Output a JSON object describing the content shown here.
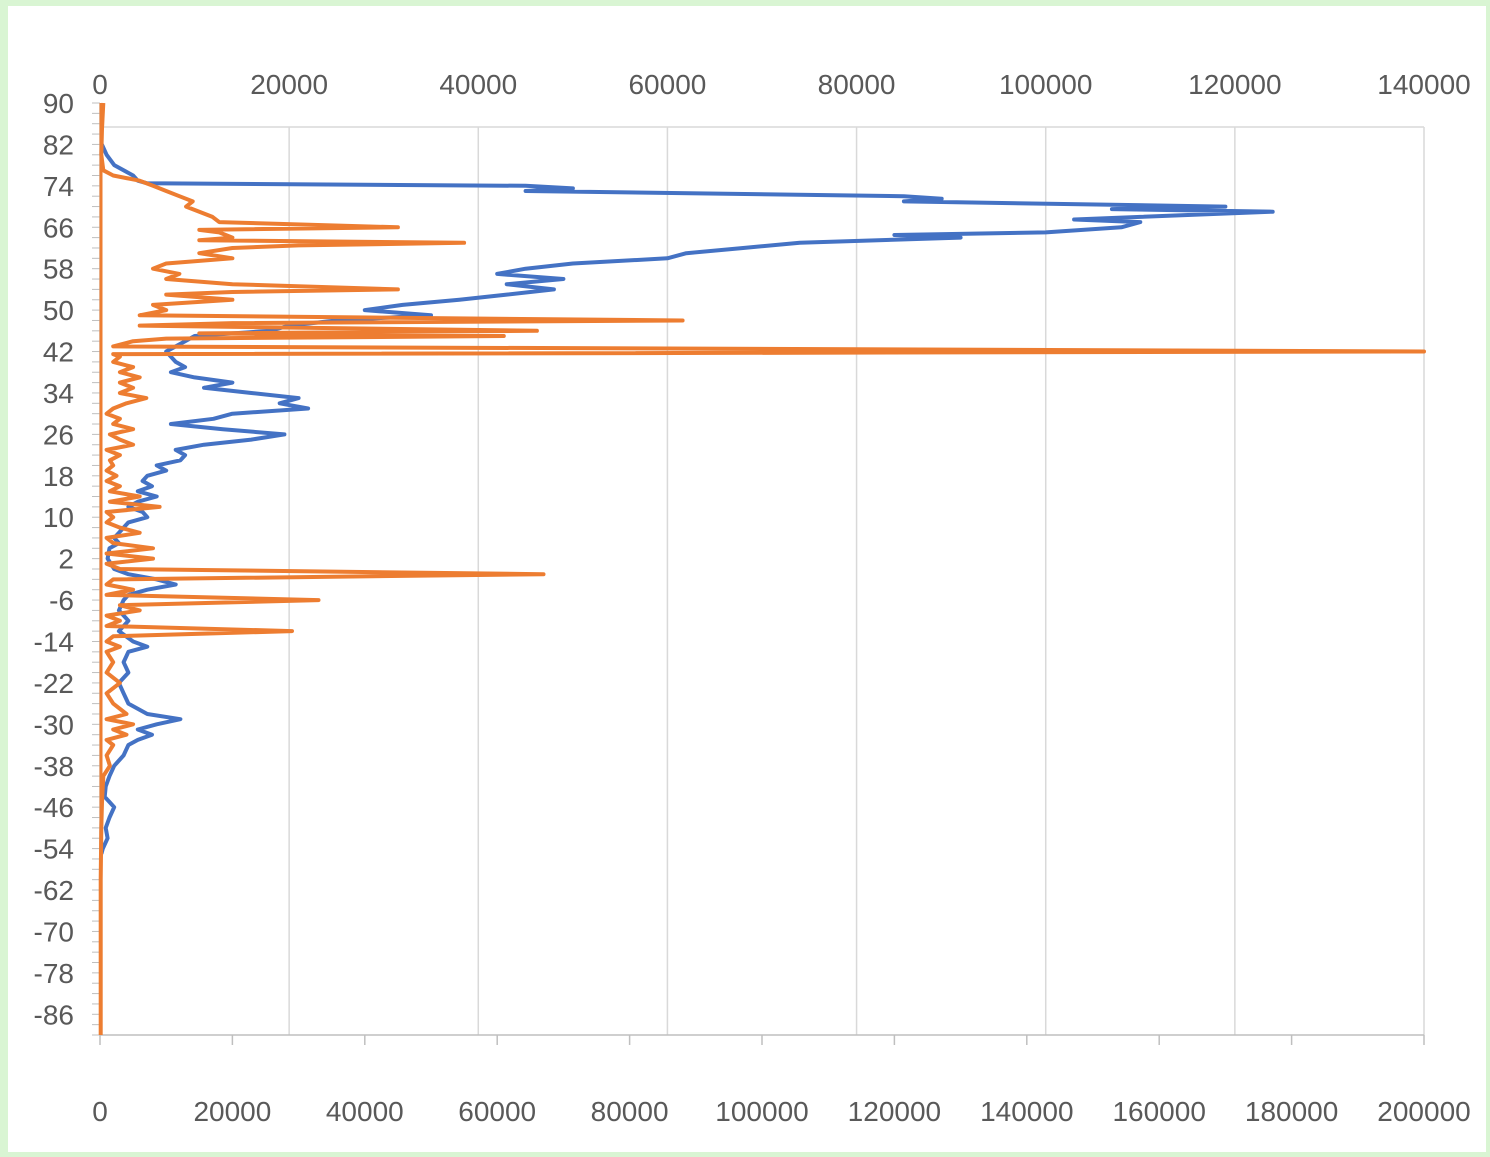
{
  "chart_data": {
    "type": "line",
    "orientation": "vertical-profile",
    "title": "",
    "y_axis": {
      "label": "",
      "range": [
        -90,
        90
      ],
      "tick_labels": [
        "90",
        "82",
        "74",
        "66",
        "58",
        "50",
        "42",
        "34",
        "26",
        "18",
        "10",
        "2",
        "-6",
        "-14",
        "-22",
        "-30",
        "-38",
        "-46",
        "-54",
        "-62",
        "-70",
        "-78",
        "-86"
      ]
    },
    "x_axis_top": {
      "label": "",
      "range": [
        0,
        140000
      ],
      "tick_labels": [
        "0",
        "20000",
        "40000",
        "60000",
        "80000",
        "100000",
        "120000",
        "140000"
      ],
      "gridlines": true
    },
    "x_axis_bottom": {
      "label": "",
      "range": [
        0,
        200000
      ],
      "tick_labels": [
        "0",
        "20000",
        "40000",
        "60000",
        "80000",
        "100000",
        "120000",
        "140000",
        "160000",
        "180000",
        "200000"
      ]
    },
    "legend": "none",
    "series": [
      {
        "axis": "top",
        "color": "#4472c4",
        "points": [
          [
            82,
            200
          ],
          [
            80,
            700
          ],
          [
            78,
            1500
          ],
          [
            76,
            3500
          ],
          [
            75,
            4000
          ],
          [
            74.5,
            5000
          ],
          [
            74,
            45000
          ],
          [
            73.5,
            50000
          ],
          [
            73,
            45000
          ],
          [
            72,
            85000
          ],
          [
            71.5,
            89000
          ],
          [
            71,
            85000
          ],
          [
            70,
            119000
          ],
          [
            69.5,
            107000
          ],
          [
            69,
            124000
          ],
          [
            68,
            110000
          ],
          [
            67.5,
            103000
          ],
          [
            67,
            110000
          ],
          [
            66,
            108000
          ],
          [
            65,
            100000
          ],
          [
            64.5,
            84000
          ],
          [
            64,
            91000
          ],
          [
            63,
            74000
          ],
          [
            62,
            68000
          ],
          [
            61,
            62000
          ],
          [
            60,
            60000
          ],
          [
            59,
            50000
          ],
          [
            58,
            45000
          ],
          [
            57,
            42000
          ],
          [
            56,
            49000
          ],
          [
            55,
            43000
          ],
          [
            54,
            48000
          ],
          [
            53,
            43000
          ],
          [
            52,
            38000
          ],
          [
            51,
            32000
          ],
          [
            50,
            28000
          ],
          [
            49,
            35000
          ],
          [
            48,
            25000
          ],
          [
            47,
            20000
          ],
          [
            46,
            18000
          ],
          [
            45,
            10000
          ],
          [
            44,
            9000
          ],
          [
            43,
            8000
          ],
          [
            42,
            7000
          ],
          [
            41,
            7500
          ],
          [
            40,
            8000
          ],
          [
            39,
            9000
          ],
          [
            38,
            7500
          ],
          [
            37,
            10000
          ],
          [
            36,
            14000
          ],
          [
            35,
            11000
          ],
          [
            34,
            16000
          ],
          [
            33,
            21000
          ],
          [
            32,
            19000
          ],
          [
            31,
            22000
          ],
          [
            30,
            14000
          ],
          [
            29,
            12000
          ],
          [
            28,
            7500
          ],
          [
            27,
            13000
          ],
          [
            26,
            19500
          ],
          [
            25,
            16000
          ],
          [
            24,
            11000
          ],
          [
            23,
            8000
          ],
          [
            22,
            9000
          ],
          [
            21,
            8500
          ],
          [
            20,
            6000
          ],
          [
            19,
            7000
          ],
          [
            18,
            5000
          ],
          [
            17,
            4500
          ],
          [
            16,
            5500
          ],
          [
            15,
            4000
          ],
          [
            14,
            6000
          ],
          [
            13,
            4000
          ],
          [
            12,
            3000
          ],
          [
            11,
            4500
          ],
          [
            10,
            5000
          ],
          [
            9,
            3000
          ],
          [
            8,
            2500
          ],
          [
            7,
            2000
          ],
          [
            6,
            1500
          ],
          [
            5,
            2000
          ],
          [
            4,
            1000
          ],
          [
            2,
            800
          ],
          [
            0,
            1500
          ],
          [
            -1,
            3000
          ],
          [
            -2,
            6000
          ],
          [
            -3,
            8000
          ],
          [
            -4,
            5000
          ],
          [
            -5,
            3000
          ],
          [
            -6,
            2500
          ],
          [
            -8,
            2000
          ],
          [
            -10,
            3000
          ],
          [
            -12,
            2000
          ],
          [
            -14,
            3500
          ],
          [
            -15,
            5000
          ],
          [
            -16,
            3000
          ],
          [
            -18,
            2500
          ],
          [
            -20,
            3000
          ],
          [
            -22,
            2000
          ],
          [
            -24,
            2500
          ],
          [
            -26,
            3000
          ],
          [
            -28,
            5000
          ],
          [
            -29,
            8500
          ],
          [
            -30,
            6000
          ],
          [
            -31,
            4000
          ],
          [
            -32,
            5500
          ],
          [
            -33,
            4000
          ],
          [
            -34,
            3000
          ],
          [
            -36,
            2500
          ],
          [
            -38,
            1500
          ],
          [
            -40,
            1000
          ],
          [
            -42,
            600
          ],
          [
            -44,
            500
          ],
          [
            -45,
            1000
          ],
          [
            -46,
            1500
          ],
          [
            -48,
            1000
          ],
          [
            -50,
            600
          ],
          [
            -52,
            800
          ],
          [
            -54,
            300
          ],
          [
            -55,
            150
          ]
        ]
      },
      {
        "axis": "bottom",
        "color": "#ed7d31",
        "points": [
          [
            90,
            500
          ],
          [
            85,
            300
          ],
          [
            80,
            200
          ],
          [
            77,
            500
          ],
          [
            76,
            2000
          ],
          [
            75,
            6000
          ],
          [
            74,
            8000
          ],
          [
            73,
            10000
          ],
          [
            72,
            12000
          ],
          [
            71,
            14000
          ],
          [
            70,
            13000
          ],
          [
            69,
            15000
          ],
          [
            68,
            17000
          ],
          [
            67,
            18000
          ],
          [
            66,
            45000
          ],
          [
            65.5,
            15000
          ],
          [
            65,
            18000
          ],
          [
            64,
            20000
          ],
          [
            63.5,
            15000
          ],
          [
            63,
            55000
          ],
          [
            62.5,
            30000
          ],
          [
            62,
            20000
          ],
          [
            61,
            15000
          ],
          [
            60,
            20000
          ],
          [
            59,
            10000
          ],
          [
            58,
            8000
          ],
          [
            57,
            12000
          ],
          [
            56,
            10000
          ],
          [
            55,
            20000
          ],
          [
            54,
            45000
          ],
          [
            53.5,
            20000
          ],
          [
            53,
            10000
          ],
          [
            52,
            20000
          ],
          [
            51,
            8000
          ],
          [
            50,
            10000
          ],
          [
            49,
            6000
          ],
          [
            48,
            88000
          ],
          [
            47.5,
            20000
          ],
          [
            47,
            6000
          ],
          [
            46,
            66000
          ],
          [
            45.5,
            15000
          ],
          [
            45,
            61000
          ],
          [
            44.5,
            10000
          ],
          [
            44,
            5000
          ],
          [
            43,
            2000
          ],
          [
            42,
            200000
          ],
          [
            41.5,
            2000
          ],
          [
            41,
            3000
          ],
          [
            40,
            2000
          ],
          [
            39,
            5000
          ],
          [
            38,
            3000
          ],
          [
            37,
            6000
          ],
          [
            36,
            3000
          ],
          [
            35,
            5000
          ],
          [
            34,
            3000
          ],
          [
            33,
            7000
          ],
          [
            32,
            4000
          ],
          [
            31,
            2000
          ],
          [
            30,
            1000
          ],
          [
            29,
            3000
          ],
          [
            28,
            2000
          ],
          [
            27,
            5000
          ],
          [
            26,
            1500
          ],
          [
            25,
            3000
          ],
          [
            24,
            5000
          ],
          [
            23,
            1000
          ],
          [
            22,
            3000
          ],
          [
            21,
            1500
          ],
          [
            20,
            2000
          ],
          [
            19,
            1000
          ],
          [
            18,
            2500
          ],
          [
            17,
            1000
          ],
          [
            16,
            3000
          ],
          [
            15,
            1500
          ],
          [
            14,
            6000
          ],
          [
            13,
            1500
          ],
          [
            12,
            9000
          ],
          [
            11,
            1000
          ],
          [
            10,
            2000
          ],
          [
            9,
            1000
          ],
          [
            8,
            3000
          ],
          [
            7,
            6000
          ],
          [
            6,
            1000
          ],
          [
            5,
            2000
          ],
          [
            4,
            8000
          ],
          [
            3,
            1000
          ],
          [
            2,
            8000
          ],
          [
            1,
            1000
          ],
          [
            0,
            3000
          ],
          [
            -1,
            67000
          ],
          [
            -2,
            2000
          ],
          [
            -3,
            1000
          ],
          [
            -4,
            5000
          ],
          [
            -5,
            1000
          ],
          [
            -6,
            33000
          ],
          [
            -7,
            3000
          ],
          [
            -8,
            6000
          ],
          [
            -9,
            1000
          ],
          [
            -10,
            3000
          ],
          [
            -11,
            1000
          ],
          [
            -12,
            29000
          ],
          [
            -13,
            2000
          ],
          [
            -14,
            1000
          ],
          [
            -15,
            3000
          ],
          [
            -16,
            1000
          ],
          [
            -18,
            2000
          ],
          [
            -20,
            1000
          ],
          [
            -22,
            3000
          ],
          [
            -24,
            1000
          ],
          [
            -26,
            2000
          ],
          [
            -28,
            4000
          ],
          [
            -29,
            1000
          ],
          [
            -30,
            5000
          ],
          [
            -31,
            2000
          ],
          [
            -32,
            4000
          ],
          [
            -33,
            1000
          ],
          [
            -34,
            2000
          ],
          [
            -36,
            1000
          ],
          [
            -38,
            1500
          ],
          [
            -40,
            500
          ],
          [
            -45,
            300
          ],
          [
            -50,
            200
          ],
          [
            -60,
            100
          ],
          [
            -70,
            100
          ],
          [
            -80,
            100
          ],
          [
            -90,
            100
          ]
        ]
      }
    ]
  }
}
